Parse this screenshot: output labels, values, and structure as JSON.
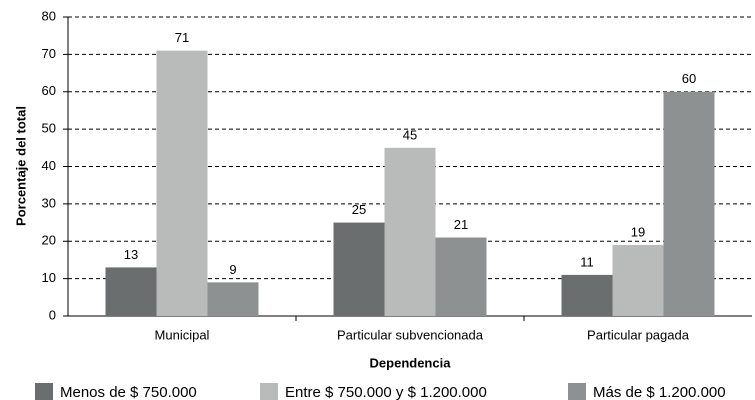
{
  "chart_data": {
    "type": "bar",
    "x_label": "Dependencia",
    "y_label": "Porcentaje del total",
    "categories": [
      "Municipal",
      "Particular subvencionada",
      "Particular pagada"
    ],
    "series": [
      {
        "name": "Menos de $ 750.000",
        "color": "#6b6e6f",
        "values": [
          13,
          25,
          11
        ]
      },
      {
        "name": "Entre $ 750.000 y $ 1.200.000",
        "color": "#b9baba",
        "values": [
          71,
          45,
          19
        ]
      },
      {
        "name": "Más de $ 1.200.000",
        "color": "#8e9191",
        "values": [
          9,
          21,
          60
        ]
      }
    ],
    "ylim": [
      0,
      80
    ],
    "yticks": [
      0,
      10,
      20,
      30,
      40,
      50,
      60,
      70,
      80
    ],
    "grid": true,
    "legend": "bottom"
  }
}
